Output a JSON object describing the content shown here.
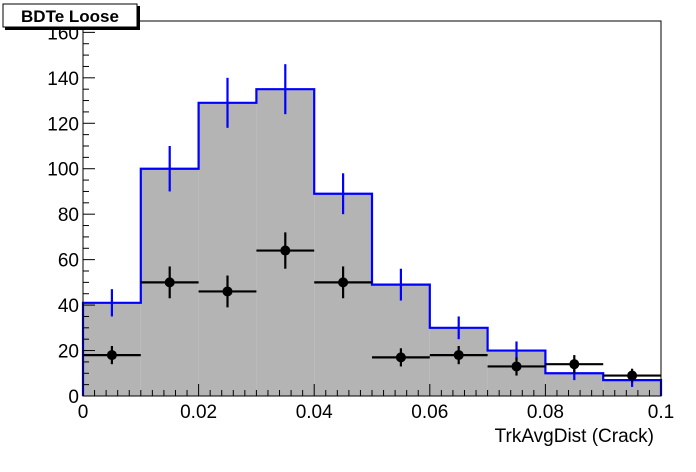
{
  "chart_data": {
    "type": "bar",
    "title": "BDTe Loose",
    "xlabel": "TrkAvgDist (Crack)",
    "ylabel": "",
    "xlim": [
      0,
      0.1
    ],
    "ylim": [
      0,
      165
    ],
    "x_ticks": [
      "0",
      "0.02",
      "0.04",
      "0.06",
      "0.08",
      "0.1"
    ],
    "y_ticks": [
      "0",
      "20",
      "40",
      "60",
      "80",
      "100",
      "120",
      "140",
      "160"
    ],
    "bin_edges": [
      0,
      0.01,
      0.02,
      0.03,
      0.04,
      0.05,
      0.06,
      0.07,
      0.08,
      0.09,
      0.1
    ],
    "series": [
      {
        "style": "histogram",
        "values": [
          41,
          100,
          129,
          135,
          89,
          49,
          30,
          20,
          10,
          7
        ],
        "errors": [
          6,
          10,
          11,
          11,
          9,
          7,
          5,
          4,
          3,
          3
        ],
        "color": "#0000ff",
        "fill": "#b4b4b4"
      },
      {
        "style": "points",
        "values": [
          18,
          50,
          46,
          64,
          50,
          17,
          18,
          13,
          14,
          9
        ],
        "errors": [
          4,
          7,
          7,
          8,
          7,
          4,
          4,
          4,
          4,
          3
        ],
        "color": "#000000"
      }
    ],
    "grid": false
  }
}
